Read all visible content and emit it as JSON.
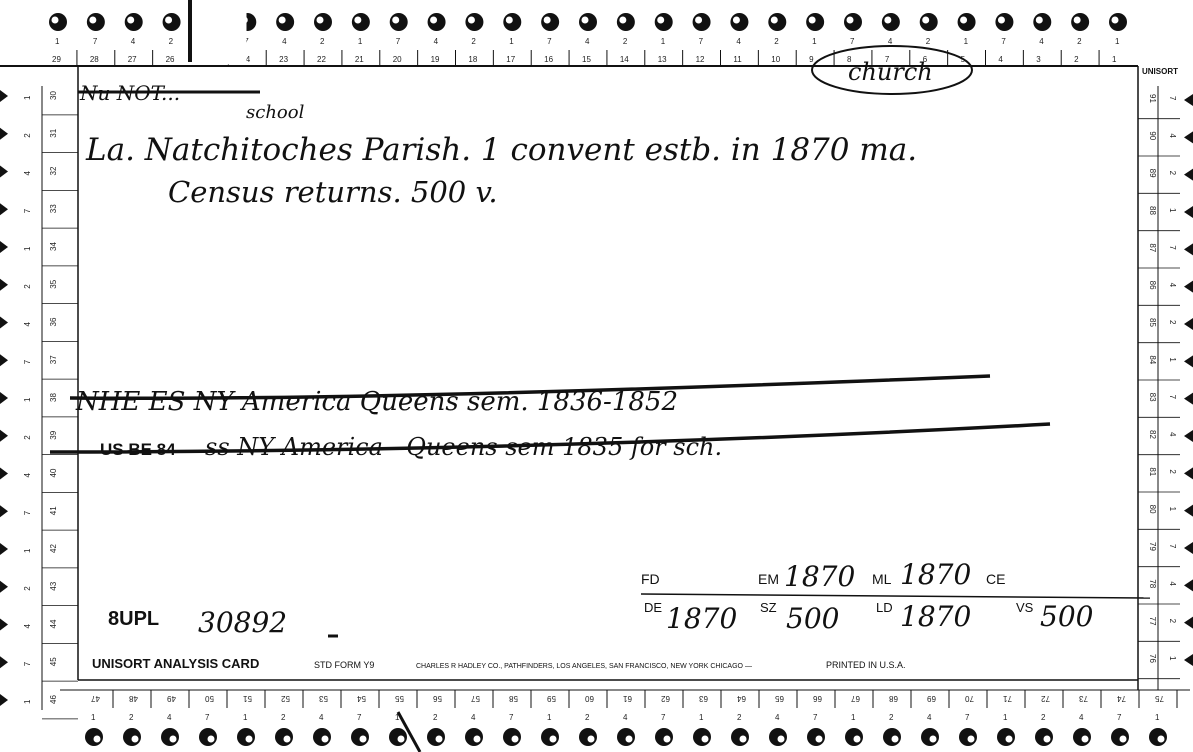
{
  "top_edge": {
    "hole_codes": [
      "1",
      "7",
      "4",
      "2",
      "",
      "7",
      "4",
      "2",
      "1",
      "7",
      "4",
      "2",
      "1",
      "7",
      "4",
      "2",
      "1",
      "7",
      "4",
      "2",
      "1",
      "7",
      "4",
      "2",
      "1",
      "7",
      "4",
      "2",
      "1"
    ],
    "slot_numbers": [
      "29",
      "28",
      "27",
      "26",
      "",
      "24",
      "23",
      "22",
      "21",
      "20",
      "19",
      "18",
      "17",
      "16",
      "15",
      "14",
      "13",
      "12",
      "11",
      "10",
      "9",
      "8",
      "7",
      "6",
      "5",
      "4",
      "3",
      "2",
      "1"
    ]
  },
  "bottom_edge": {
    "hole_codes": [
      "1",
      "2",
      "4",
      "7",
      "1",
      "2",
      "4",
      "7",
      "1",
      "2",
      "4",
      "7",
      "1",
      "2",
      "4",
      "7",
      "1",
      "2",
      "4",
      "7",
      "1",
      "2",
      "4",
      "7",
      "1",
      "2",
      "4",
      "7",
      "1"
    ],
    "slot_numbers": [
      "47",
      "48",
      "49",
      "50",
      "51",
      "52",
      "53",
      "54",
      "55",
      "56",
      "57",
      "58",
      "59",
      "60",
      "61",
      "62",
      "63",
      "64",
      "65",
      "66",
      "67",
      "68",
      "69",
      "70",
      "71",
      "72",
      "73",
      "74",
      "75"
    ]
  },
  "left_edge": {
    "codes": [
      "1",
      "2",
      "4",
      "7",
      "1",
      "2",
      "4",
      "7",
      "1",
      "2",
      "4",
      "7",
      "1",
      "2",
      "4",
      "7",
      "1"
    ],
    "numbers": [
      "30",
      "31",
      "32",
      "33",
      "34",
      "35",
      "36",
      "37",
      "38",
      "39",
      "40",
      "41",
      "42",
      "43",
      "44",
      "45",
      "46"
    ]
  },
  "right_edge": {
    "codes": [
      "7",
      "4",
      "2",
      "1",
      "7",
      "4",
      "2",
      "1",
      "7",
      "4",
      "2",
      "1",
      "7",
      "4",
      "2",
      "1"
    ],
    "numbers": [
      "91",
      "90",
      "89",
      "88",
      "87",
      "86",
      "85",
      "84",
      "83",
      "82",
      "81",
      "80",
      "79",
      "78",
      "77",
      "76"
    ]
  },
  "brand": "UNISORT",
  "category_label": "church",
  "notes": {
    "line1": "La. Natchitoches Parish. 1 convent estb. in 1870 ma.",
    "line2": "Census returns. 500 v.",
    "insertion": "school"
  },
  "struck_lines": {
    "line1": "NHE ES NY America Queens sem. 1836-1852",
    "line2_stamp": "US BE 84",
    "line2_hand": "ss NY America - Queens sem 1835 for sch."
  },
  "fields": {
    "FD": {
      "label": "FD",
      "value": ""
    },
    "EM": {
      "label": "EM",
      "value": "1870"
    },
    "ML": {
      "label": "ML",
      "value": "1870"
    },
    "CE": {
      "label": "CE",
      "value": ""
    },
    "DE": {
      "label": "DE",
      "value": "1870"
    },
    "SZ": {
      "label": "SZ",
      "value": "500"
    },
    "LD": {
      "label": "LD",
      "value": "1870"
    },
    "VS": {
      "label": "VS",
      "value": "500"
    }
  },
  "reference": {
    "stamp": "8UPL",
    "number": "30892"
  },
  "footer": {
    "title": "UNISORT ANALYSIS CARD",
    "std_form": "STD  FORM Y9",
    "publisher": "CHARLES R HADLEY CO., PATHFINDERS, LOS ANGELES, SAN FRANCISCO, NEW YORK CHICAGO —",
    "printed": "PRINTED IN U.S.A."
  }
}
